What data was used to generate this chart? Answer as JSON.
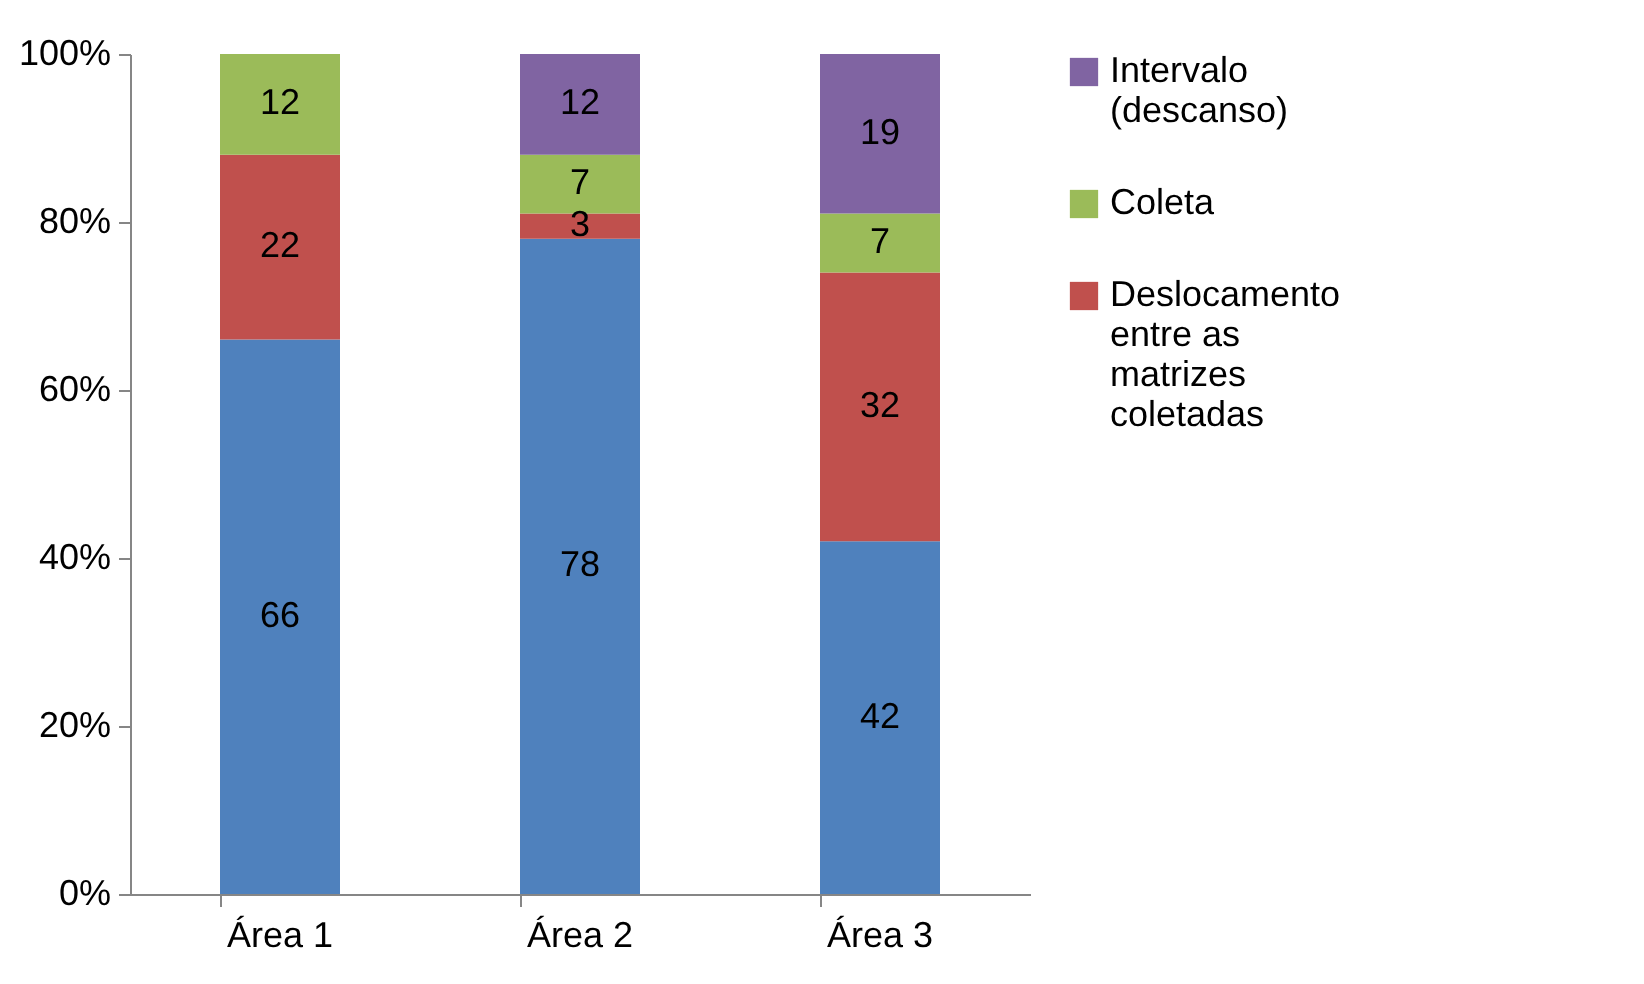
{
  "chart_data": {
    "type": "bar",
    "stacked": true,
    "categories": [
      "Área 1",
      "Área 2",
      "Área 3"
    ],
    "series": [
      {
        "color": "#4f81bd",
        "values": [
          66,
          78,
          42
        ]
      },
      {
        "name": "Deslocamento entre as matrizes coletadas",
        "color": "#c0504d",
        "values": [
          22,
          3,
          32
        ]
      },
      {
        "name": "Coleta",
        "color": "#9bbb59",
        "values": [
          12,
          7,
          7
        ]
      },
      {
        "name": "Intervalo (descanso)",
        "color": "#8064a2",
        "values": [
          null,
          12,
          19
        ]
      }
    ],
    "ylim": [
      0,
      100
    ],
    "yticks": [
      {
        "value": 0,
        "label": "0%"
      },
      {
        "value": 20,
        "label": "20%"
      },
      {
        "value": 40,
        "label": "40%"
      },
      {
        "value": 60,
        "label": "60%"
      },
      {
        "value": 80,
        "label": "80%"
      },
      {
        "value": 100,
        "label": "100%"
      }
    ],
    "data_labels": true,
    "grid": false,
    "legend": "right"
  }
}
